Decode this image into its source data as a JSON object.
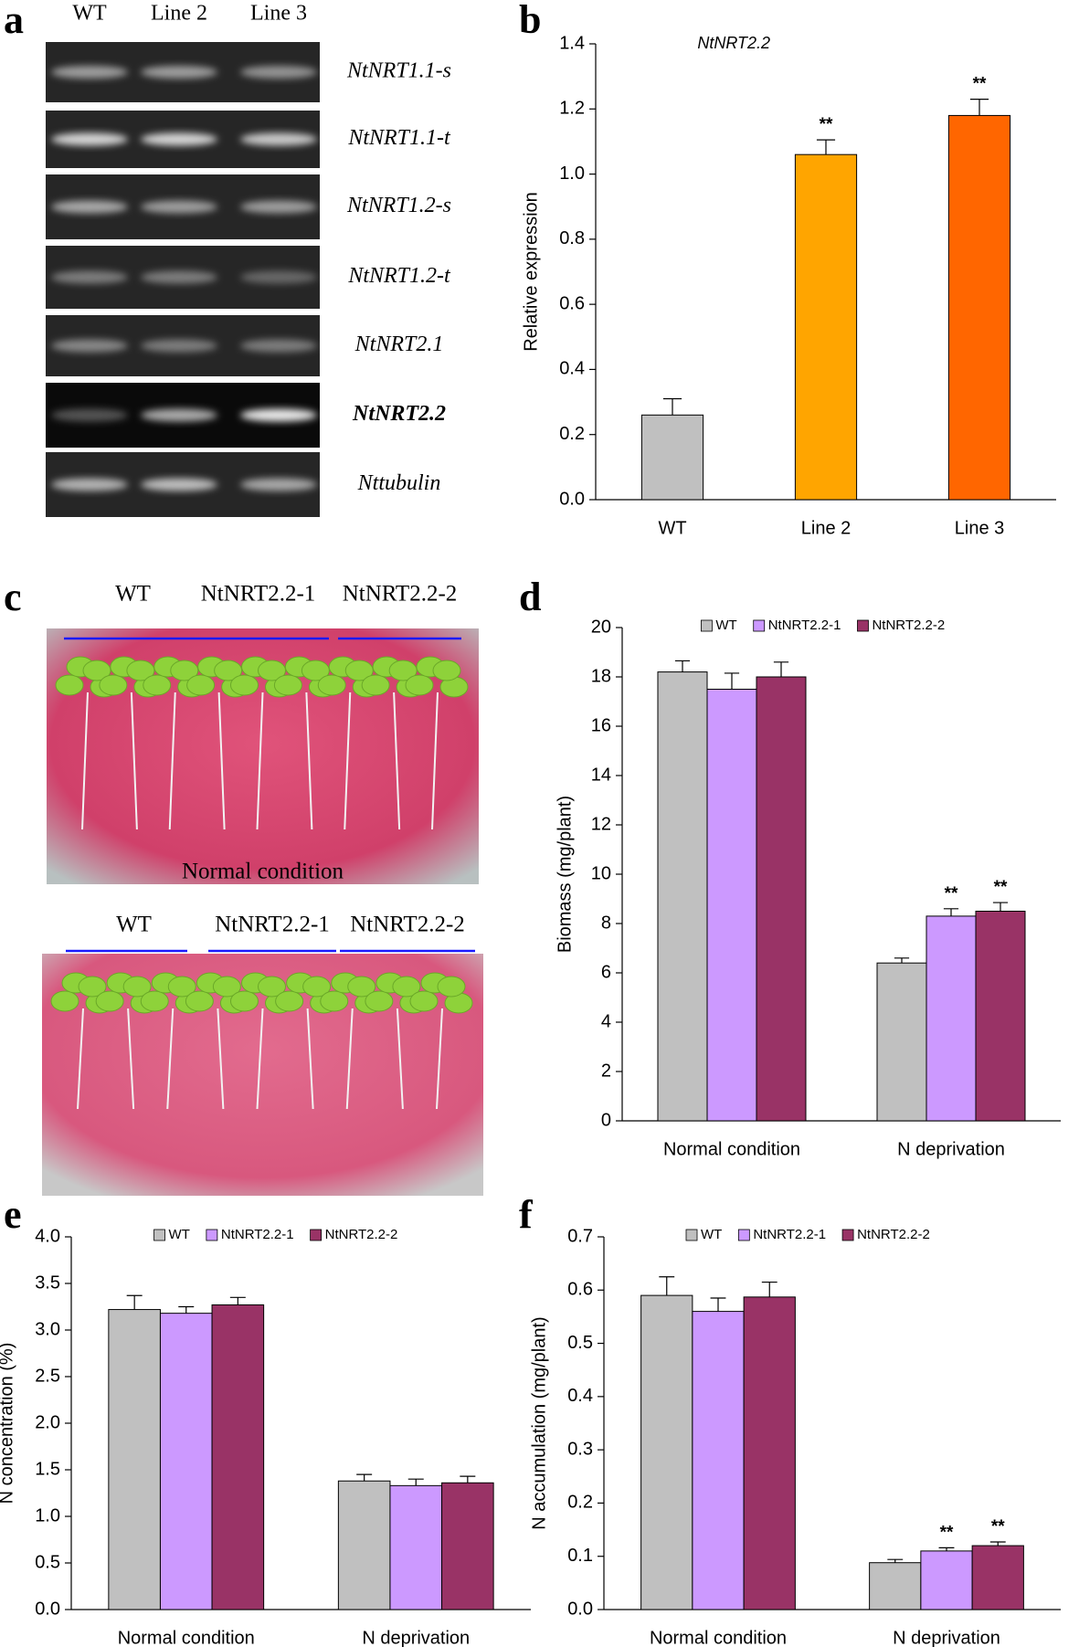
{
  "gel": {
    "panel": "a",
    "lanes": [
      "WT",
      "Line 2",
      "Line 3"
    ],
    "genes": [
      "NtNRT1.1-s",
      "NtNRT1.1-t",
      "NtNRT1.2-s",
      "NtNRT1.2-t",
      "NtNRT2.1",
      "NtNRT2.2",
      "Nttubulin"
    ]
  },
  "photos": {
    "panel": "c",
    "plates": [
      {
        "labels": [
          "WT",
          "NtNRT2.2-1",
          "NtNRT2.2-2"
        ],
        "caption": "Normal condition"
      },
      {
        "labels": [
          "WT",
          "NtNRT2.2-1",
          "NtNRT2.2-2"
        ]
      }
    ]
  },
  "chart_data": [
    {
      "type": "bar",
      "panel": "b",
      "title": "NtNRT2.2",
      "y_label": "Relative expression",
      "categories": [
        "WT",
        "Line 2",
        "Line 3"
      ],
      "values": [
        0.26,
        1.06,
        1.18
      ],
      "errors": [
        0.05,
        0.045,
        0.05
      ],
      "significance": [
        null,
        "**",
        "**"
      ],
      "colors": [
        "#c0c0c0",
        "#ffa500",
        "#ff6600"
      ],
      "ylim": [
        0,
        1.4
      ],
      "yticks": [
        {
          "value": 0,
          "label": "0.0"
        },
        0.2,
        0.4,
        0.6,
        0.8,
        {
          "value": 1,
          "label": "1.0"
        },
        1.2,
        1.4
      ]
    },
    {
      "type": "bar",
      "panel": "d",
      "y_label": "Biomass (mg/plant)",
      "legend": "top",
      "categories": [
        "Normal condition",
        "N deprivation"
      ],
      "series": [
        {
          "name": "WT",
          "color": "#c0c0c0",
          "values": [
            18.2,
            6.4
          ],
          "errors": [
            0.45,
            0.2
          ],
          "significance": [
            null,
            null
          ]
        },
        {
          "name": "NtNRT2.2-1",
          "color": "#cc99ff",
          "values": [
            17.5,
            8.3
          ],
          "errors": [
            0.65,
            0.3
          ],
          "significance": [
            null,
            "**"
          ]
        },
        {
          "name": "NtNRT2.2-2",
          "color": "#993366",
          "values": [
            18.0,
            8.5
          ],
          "errors": [
            0.6,
            0.35
          ],
          "significance": [
            null,
            "**"
          ]
        }
      ],
      "ylim": [
        0,
        20
      ],
      "yticks": [
        0,
        2,
        4,
        6,
        8,
        10,
        12,
        14,
        16,
        18,
        20
      ]
    },
    {
      "type": "bar",
      "panel": "e",
      "y_label": "N concentration (%)",
      "legend": "top",
      "categories": [
        "Normal condition",
        "N deprivation"
      ],
      "series": [
        {
          "name": "WT",
          "color": "#c0c0c0",
          "values": [
            3.22,
            1.38
          ],
          "errors": [
            0.15,
            0.07
          ]
        },
        {
          "name": "NtNRT2.2-1",
          "color": "#cc99ff",
          "values": [
            3.18,
            1.33
          ],
          "errors": [
            0.07,
            0.07
          ]
        },
        {
          "name": "NtNRT2.2-2",
          "color": "#993366",
          "values": [
            3.27,
            1.36
          ],
          "errors": [
            0.08,
            0.07
          ]
        }
      ],
      "ylim": [
        0,
        4
      ],
      "yticks": [
        {
          "value": 0,
          "label": "0.0"
        },
        0.5,
        {
          "value": 1,
          "label": "1.0"
        },
        1.5,
        {
          "value": 2,
          "label": "2.0"
        },
        2.5,
        {
          "value": 3,
          "label": "3.0"
        },
        3.5,
        {
          "value": 4,
          "label": "4.0"
        }
      ]
    },
    {
      "type": "bar",
      "panel": "f",
      "y_label": "N accumulation (mg/plant)",
      "legend": "top",
      "categories": [
        "Normal condition",
        "N deprivation"
      ],
      "series": [
        {
          "name": "WT",
          "color": "#c0c0c0",
          "values": [
            0.59,
            0.088
          ],
          "errors": [
            0.035,
            0.006
          ],
          "significance": [
            null,
            null
          ]
        },
        {
          "name": "NtNRT2.2-1",
          "color": "#cc99ff",
          "values": [
            0.56,
            0.11
          ],
          "errors": [
            0.025,
            0.006
          ],
          "significance": [
            null,
            "**"
          ]
        },
        {
          "name": "NtNRT2.2-2",
          "color": "#993366",
          "values": [
            0.587,
            0.12
          ],
          "errors": [
            0.028,
            0.007
          ],
          "significance": [
            null,
            "**"
          ]
        }
      ],
      "ylim": [
        0,
        0.7
      ],
      "yticks": [
        {
          "value": 0,
          "label": "0.0"
        },
        0.1,
        0.2,
        0.3,
        0.4,
        0.5,
        0.6,
        0.7
      ]
    }
  ]
}
